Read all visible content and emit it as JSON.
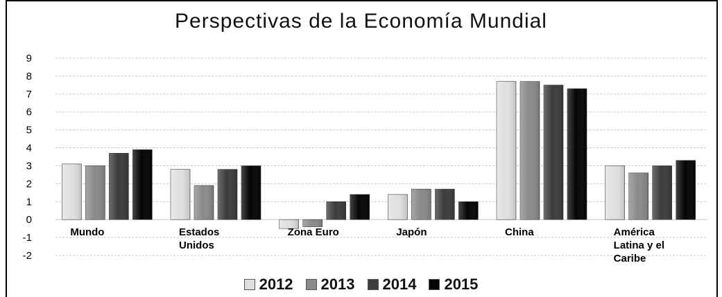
{
  "chart_data": {
    "type": "bar",
    "title": "Perspectivas de la Economía Mundial",
    "categories": [
      "Mundo",
      "Estados Unidos",
      "Zona Euro",
      "Japón",
      "China",
      "América Latina y el Caribe"
    ],
    "category_lines": [
      [
        "Mundo"
      ],
      [
        "Estados",
        "Unidos"
      ],
      [
        "Zona Euro"
      ],
      [
        "Japón"
      ],
      [
        "China"
      ],
      [
        "América",
        "Latina y el",
        "Caribe"
      ]
    ],
    "series": [
      {
        "name": "2012",
        "color": "#e0e0e0",
        "values": [
          3.1,
          2.8,
          -0.5,
          1.4,
          7.7,
          3.0
        ]
      },
      {
        "name": "2013",
        "color": "#8a8a8a",
        "values": [
          3.0,
          1.9,
          -0.4,
          1.7,
          7.7,
          2.6
        ]
      },
      {
        "name": "2014",
        "color": "#3c3c3c",
        "values": [
          3.7,
          2.8,
          1.0,
          1.7,
          7.5,
          3.0
        ]
      },
      {
        "name": "2015",
        "color": "#050505",
        "values": [
          3.9,
          3.0,
          1.4,
          1.0,
          7.3,
          3.3
        ]
      }
    ],
    "yticks": [
      "9",
      "8",
      "7",
      "6",
      "5",
      "4",
      "3",
      "2",
      "1",
      "0",
      "-1",
      "-2"
    ],
    "ylim": [
      -2,
      9
    ],
    "grid": true,
    "legend_position": "bottom"
  }
}
